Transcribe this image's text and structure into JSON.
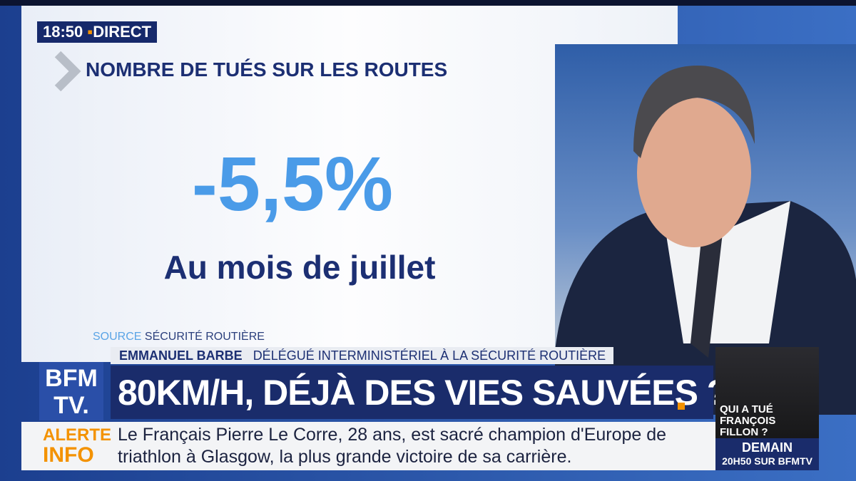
{
  "clock": {
    "time": "18:50",
    "status": "DIRECT"
  },
  "graphic": {
    "title": "NOMBRE DE TUÉS SUR LES ROUTES",
    "figure": "-5,5%",
    "caption": "Au mois de juillet",
    "source_label": "SOURCE",
    "source": "SÉCURITÉ ROUTIÈRE"
  },
  "guest": {
    "name": "EMMANUEL BARBE",
    "role": "DÉLÉGUÉ INTERMINISTÉRIEL À LA SÉCURITÉ ROUTIÈRE"
  },
  "logo": {
    "line1": "BFM",
    "line2": "TV."
  },
  "headline": "80KM/H, DÉJÀ DES VIES SAUVÉES ?",
  "ticker": {
    "label_1": "ALERTE",
    "label_2": "INFO",
    "lines": [
      "Le Français Pierre Le Corre, 28 ans, est sacré champion d'Europe de",
      "triathlon à Glasgow, la plus grande victoire de sa carrière."
    ]
  },
  "promo": {
    "lines": [
      "QUI A TUÉ",
      "FRANÇOIS",
      "FILLON ?"
    ],
    "day": "DEMAIN",
    "slot": "20H50 SUR BFMTV"
  }
}
